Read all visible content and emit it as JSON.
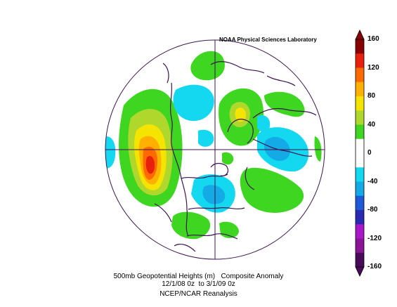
{
  "credit": "NOAA Physical Sciences Laboratory",
  "caption": {
    "line1": "500mb Geopotential Heights (m)   Composite Anomaly",
    "line2": "12/1/08 0z  to 3/1/09 0z",
    "line3": "NCEP/NCAR Reanalysis"
  },
  "colorbar": {
    "labels": [
      "160",
      "120",
      "80",
      "40",
      "0",
      "-40",
      "-80",
      "-120",
      "-160"
    ],
    "colors": [
      "#8b0000",
      "#e8200e",
      "#ff6a00",
      "#ffb000",
      "#f5e300",
      "#b0d82c",
      "#3ed620",
      "#ffffff",
      "#ffffff",
      "#14d8f0",
      "#14aae6",
      "#1e5ad8",
      "#2a2ab4",
      "#a818c8",
      "#8c1496",
      "#4a0a5a"
    ]
  },
  "map": {
    "projection": "north-polar-stereographic",
    "ocean_color": "#ffffff",
    "coast_color": "#3c1450"
  }
}
